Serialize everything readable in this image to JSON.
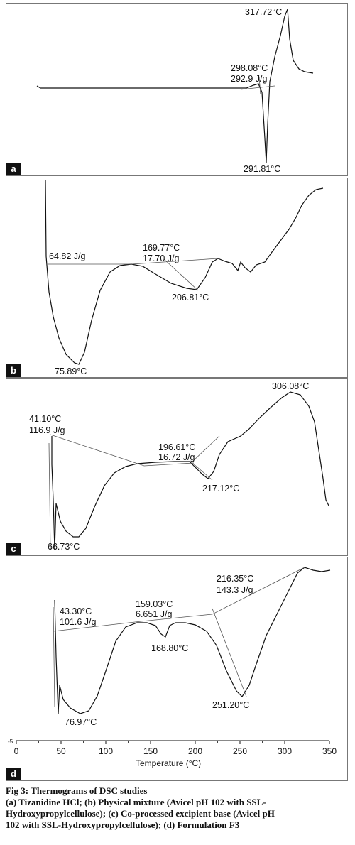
{
  "chart_data": [
    {
      "type": "line",
      "panel_label": "a",
      "annotations": [
        "317.72°C",
        "298.08°C",
        "292.9 J/g",
        "291.81°C"
      ]
    },
    {
      "type": "line",
      "panel_label": "b",
      "annotations": [
        "64.82 J/g",
        "169.77°C",
        "17.70 J/g",
        "206.81°C",
        "75.89°C"
      ]
    },
    {
      "type": "line",
      "panel_label": "c",
      "annotations": [
        "41.10°C",
        "116.9 J/g",
        "196.61°C",
        "16.72 J/g",
        "217.12°C",
        "306.08°C",
        "66.73°C"
      ]
    },
    {
      "type": "line",
      "panel_label": "d",
      "annotations": [
        "43.30°C",
        "101.6 J/g",
        "159.03°C",
        "6.651 J/g",
        "168.80°C",
        "216.35°C",
        "143.3 J/g",
        "251.20°C",
        "76.97°C"
      ],
      "xlabel": "Temperature (°C)",
      "xticks": [
        0,
        50,
        100,
        150,
        200,
        250,
        300,
        350
      ],
      "xlim": [
        0,
        350
      ],
      "ytick_label": "-5"
    }
  ],
  "caption": {
    "title": "Fig 3: Thermograms of DSC studies",
    "line1": "(a) Tizanidine HCl; (b) Physical mixture (Avicel pH 102 with SSL-",
    "line2": "Hydroxypropylcellulose); (c) Co-processed excipient base (Avicel pH",
    "line3": "102 with SSL-Hydroxypropylcellulose); (d) Formulation F3"
  }
}
